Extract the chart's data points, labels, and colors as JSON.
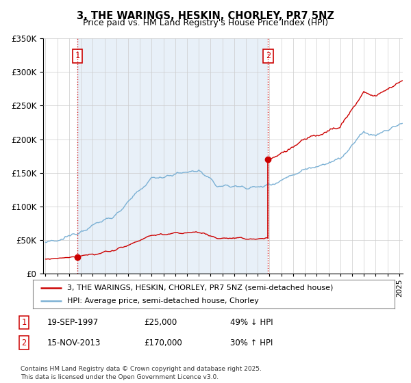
{
  "title": "3, THE WARINGS, HESKIN, CHORLEY, PR7 5NZ",
  "subtitle": "Price paid vs. HM Land Registry's House Price Index (HPI)",
  "sale1_date": 1997.72,
  "sale1_price": 25000,
  "sale2_date": 2013.88,
  "sale2_price": 170000,
  "ylim": [
    0,
    350000
  ],
  "xlim": [
    1994.8,
    2025.3
  ],
  "legend_line1": "3, THE WARINGS, HESKIN, CHORLEY, PR7 5NZ (semi-detached house)",
  "legend_line2": "HPI: Average price, semi-detached house, Chorley",
  "footer": "Contains HM Land Registry data © Crown copyright and database right 2025.\nThis data is licensed under the Open Government Licence v3.0.",
  "red_color": "#cc0000",
  "blue_color": "#7ab0d4",
  "bg_band_color": "#e8f0f8",
  "background_color": "#ffffff",
  "grid_color": "#cccccc"
}
